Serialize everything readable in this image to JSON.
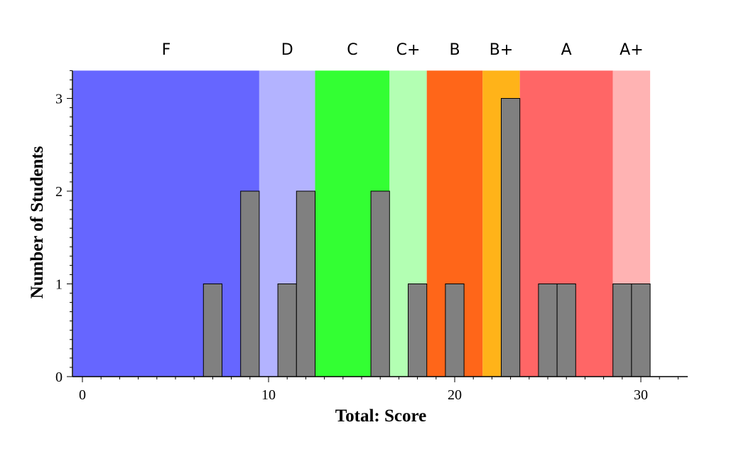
{
  "chart_data": {
    "type": "bar",
    "xlabel": "Total: Score",
    "ylabel": "Number of Students",
    "xlim": [
      -0.5,
      32.5
    ],
    "ylim": [
      0,
      3.3
    ],
    "x_ticks": [
      0,
      10,
      20,
      30
    ],
    "y_ticks": [
      0,
      1,
      2,
      3
    ],
    "bar_color": "#808080",
    "bars": [
      {
        "x": 7,
        "count": 1
      },
      {
        "x": 9,
        "count": 2
      },
      {
        "x": 11,
        "count": 1
      },
      {
        "x": 12,
        "count": 2
      },
      {
        "x": 16,
        "count": 2
      },
      {
        "x": 18,
        "count": 1
      },
      {
        "x": 20,
        "count": 1
      },
      {
        "x": 23,
        "count": 3
      },
      {
        "x": 25,
        "count": 1
      },
      {
        "x": 26,
        "count": 1
      },
      {
        "x": 29,
        "count": 1
      },
      {
        "x": 30,
        "count": 1
      }
    ],
    "grade_bands": [
      {
        "label": "F",
        "from": -0.5,
        "to": 9.5,
        "color": "#6666ff"
      },
      {
        "label": "D",
        "from": 9.5,
        "to": 12.5,
        "color": "#b3b3ff"
      },
      {
        "label": "C",
        "from": 12.5,
        "to": 16.5,
        "color": "#33ff33"
      },
      {
        "label": "C+",
        "from": 16.5,
        "to": 18.5,
        "color": "#b3ffb3"
      },
      {
        "label": "B",
        "from": 18.5,
        "to": 21.5,
        "color": "#ff6619"
      },
      {
        "label": "B+",
        "from": 21.5,
        "to": 23.5,
        "color": "#ffb319"
      },
      {
        "label": "A",
        "from": 23.5,
        "to": 28.5,
        "color": "#ff6666"
      },
      {
        "label": "A+",
        "from": 28.5,
        "to": 30.5,
        "color": "#ffb3b3"
      }
    ]
  }
}
